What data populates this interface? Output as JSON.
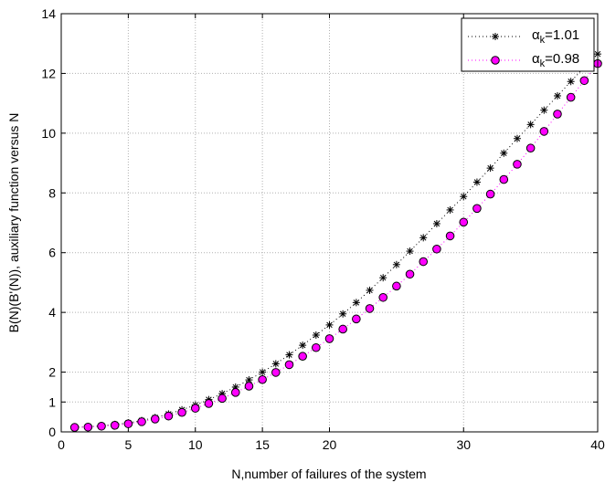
{
  "chart_data": {
    "type": "scatter",
    "xlabel": "N,number of failures of the system",
    "ylabel": "B(N)(B'(N)), auxiliary function versus N",
    "xlim": [
      0,
      40
    ],
    "ylim": [
      0,
      14
    ],
    "xticks": [
      0,
      5,
      10,
      15,
      20,
      30,
      40
    ],
    "yticks": [
      0,
      1,
      2,
      4,
      6,
      8,
      10,
      12,
      14
    ],
    "grid": true,
    "legend": "top-right",
    "x": [
      1,
      2,
      3,
      4,
      5,
      6,
      7,
      8,
      9,
      10,
      11,
      12,
      13,
      14,
      15,
      16,
      17,
      18,
      19,
      20,
      21,
      22,
      23,
      24,
      25,
      26,
      27,
      28,
      29,
      30,
      31,
      32,
      33,
      34,
      35,
      36,
      37,
      38,
      39,
      40
    ],
    "series": [
      {
        "legend_base": "α",
        "legend_sub": "k",
        "legend_value": "=1.01",
        "marker": "asterisk",
        "color": "#000000",
        "values": [
          0.15,
          0.17,
          0.2,
          0.25,
          0.3,
          0.38,
          0.48,
          0.6,
          0.74,
          0.9,
          1.08,
          1.28,
          1.5,
          1.74,
          2.0,
          2.28,
          2.58,
          2.9,
          3.24,
          3.58,
          3.95,
          4.33,
          4.74,
          5.16,
          5.6,
          6.05,
          6.5,
          6.97,
          7.43,
          7.88,
          8.36,
          8.83,
          9.33,
          9.82,
          10.29,
          10.77,
          11.25,
          11.73,
          12.2,
          12.65
        ]
      },
      {
        "legend_base": "α",
        "legend_sub": "k",
        "legend_value": "=0.98",
        "marker": "circle",
        "color": "#ff00ff",
        "values": [
          0.15,
          0.16,
          0.19,
          0.22,
          0.27,
          0.34,
          0.43,
          0.53,
          0.65,
          0.79,
          0.95,
          1.12,
          1.32,
          1.53,
          1.75,
          1.99,
          2.25,
          2.53,
          2.82,
          3.12,
          3.44,
          3.78,
          4.13,
          4.5,
          4.88,
          5.28,
          5.7,
          6.12,
          6.56,
          7.02,
          7.48,
          7.96,
          8.45,
          8.96,
          9.5,
          10.06,
          10.64,
          11.2,
          11.76,
          12.33
        ]
      }
    ]
  }
}
